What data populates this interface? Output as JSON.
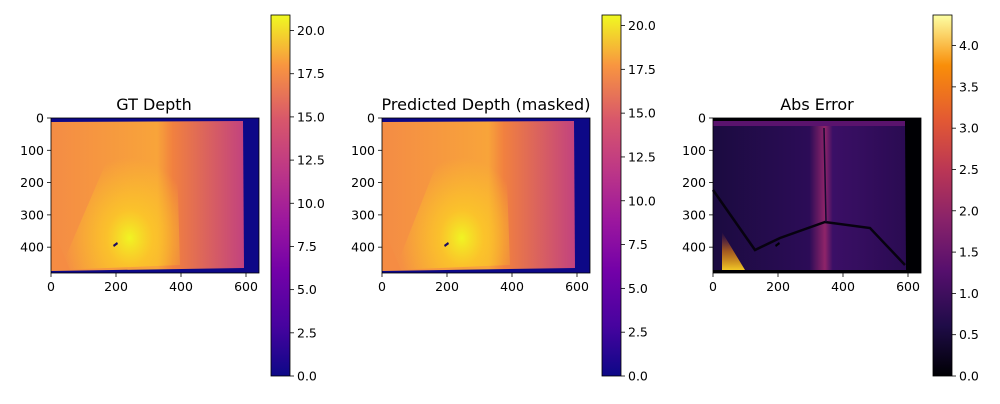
{
  "chart_data": [
    {
      "type": "heatmap",
      "title": "GT Depth",
      "xlim": [
        0,
        640
      ],
      "ylim": [
        480,
        0
      ],
      "xticks": [
        0,
        200,
        400,
        600
      ],
      "xtick_labels": [
        "0",
        "200",
        "400",
        "600"
      ],
      "yticks": [
        0,
        100,
        200,
        300,
        400
      ],
      "ytick_labels": [
        "0",
        "100",
        "200",
        "300",
        "400"
      ],
      "colormap": "plasma",
      "colorbar": {
        "range": [
          0,
          20.9
        ],
        "ticks": [
          0,
          2.5,
          5,
          7.5,
          10,
          12.5,
          15,
          17.5,
          20
        ],
        "tick_labels": [
          "0.0",
          "2.5",
          "5.0",
          "7.5",
          "10.0",
          "12.5",
          "15.0",
          "17.5",
          "20.0"
        ]
      }
    },
    {
      "type": "heatmap",
      "title": "Predicted Depth (masked)",
      "xlim": [
        0,
        640
      ],
      "ylim": [
        480,
        0
      ],
      "xticks": [
        0,
        200,
        400,
        600
      ],
      "xtick_labels": [
        "0",
        "200",
        "400",
        "600"
      ],
      "yticks": [
        0,
        100,
        200,
        300,
        400
      ],
      "ytick_labels": [
        "0",
        "100",
        "200",
        "300",
        "400"
      ],
      "colormap": "plasma",
      "colorbar": {
        "range": [
          0,
          20.6
        ],
        "ticks": [
          0,
          2.5,
          5,
          7.5,
          10,
          12.5,
          15,
          17.5,
          20
        ],
        "tick_labels": [
          "0.0",
          "2.5",
          "5.0",
          "7.5",
          "10.0",
          "12.5",
          "15.0",
          "17.5",
          "20.0"
        ]
      }
    },
    {
      "type": "heatmap",
      "title": "Abs Error",
      "xlim": [
        0,
        640
      ],
      "ylim": [
        480,
        0
      ],
      "xticks": [
        0,
        200,
        400,
        600
      ],
      "xtick_labels": [
        "0",
        "200",
        "400",
        "600"
      ],
      "yticks": [
        0,
        100,
        200,
        300,
        400
      ],
      "ytick_labels": [
        "0",
        "100",
        "200",
        "300",
        "400"
      ],
      "colormap": "inferno",
      "colorbar": {
        "range": [
          0,
          4.37
        ],
        "ticks": [
          0,
          0.5,
          1,
          1.5,
          2,
          2.5,
          3,
          3.5,
          4
        ],
        "tick_labels": [
          "0.0",
          "0.5",
          "1.0",
          "1.5",
          "2.0",
          "2.5",
          "3.0",
          "3.5",
          "4.0"
        ]
      }
    }
  ]
}
